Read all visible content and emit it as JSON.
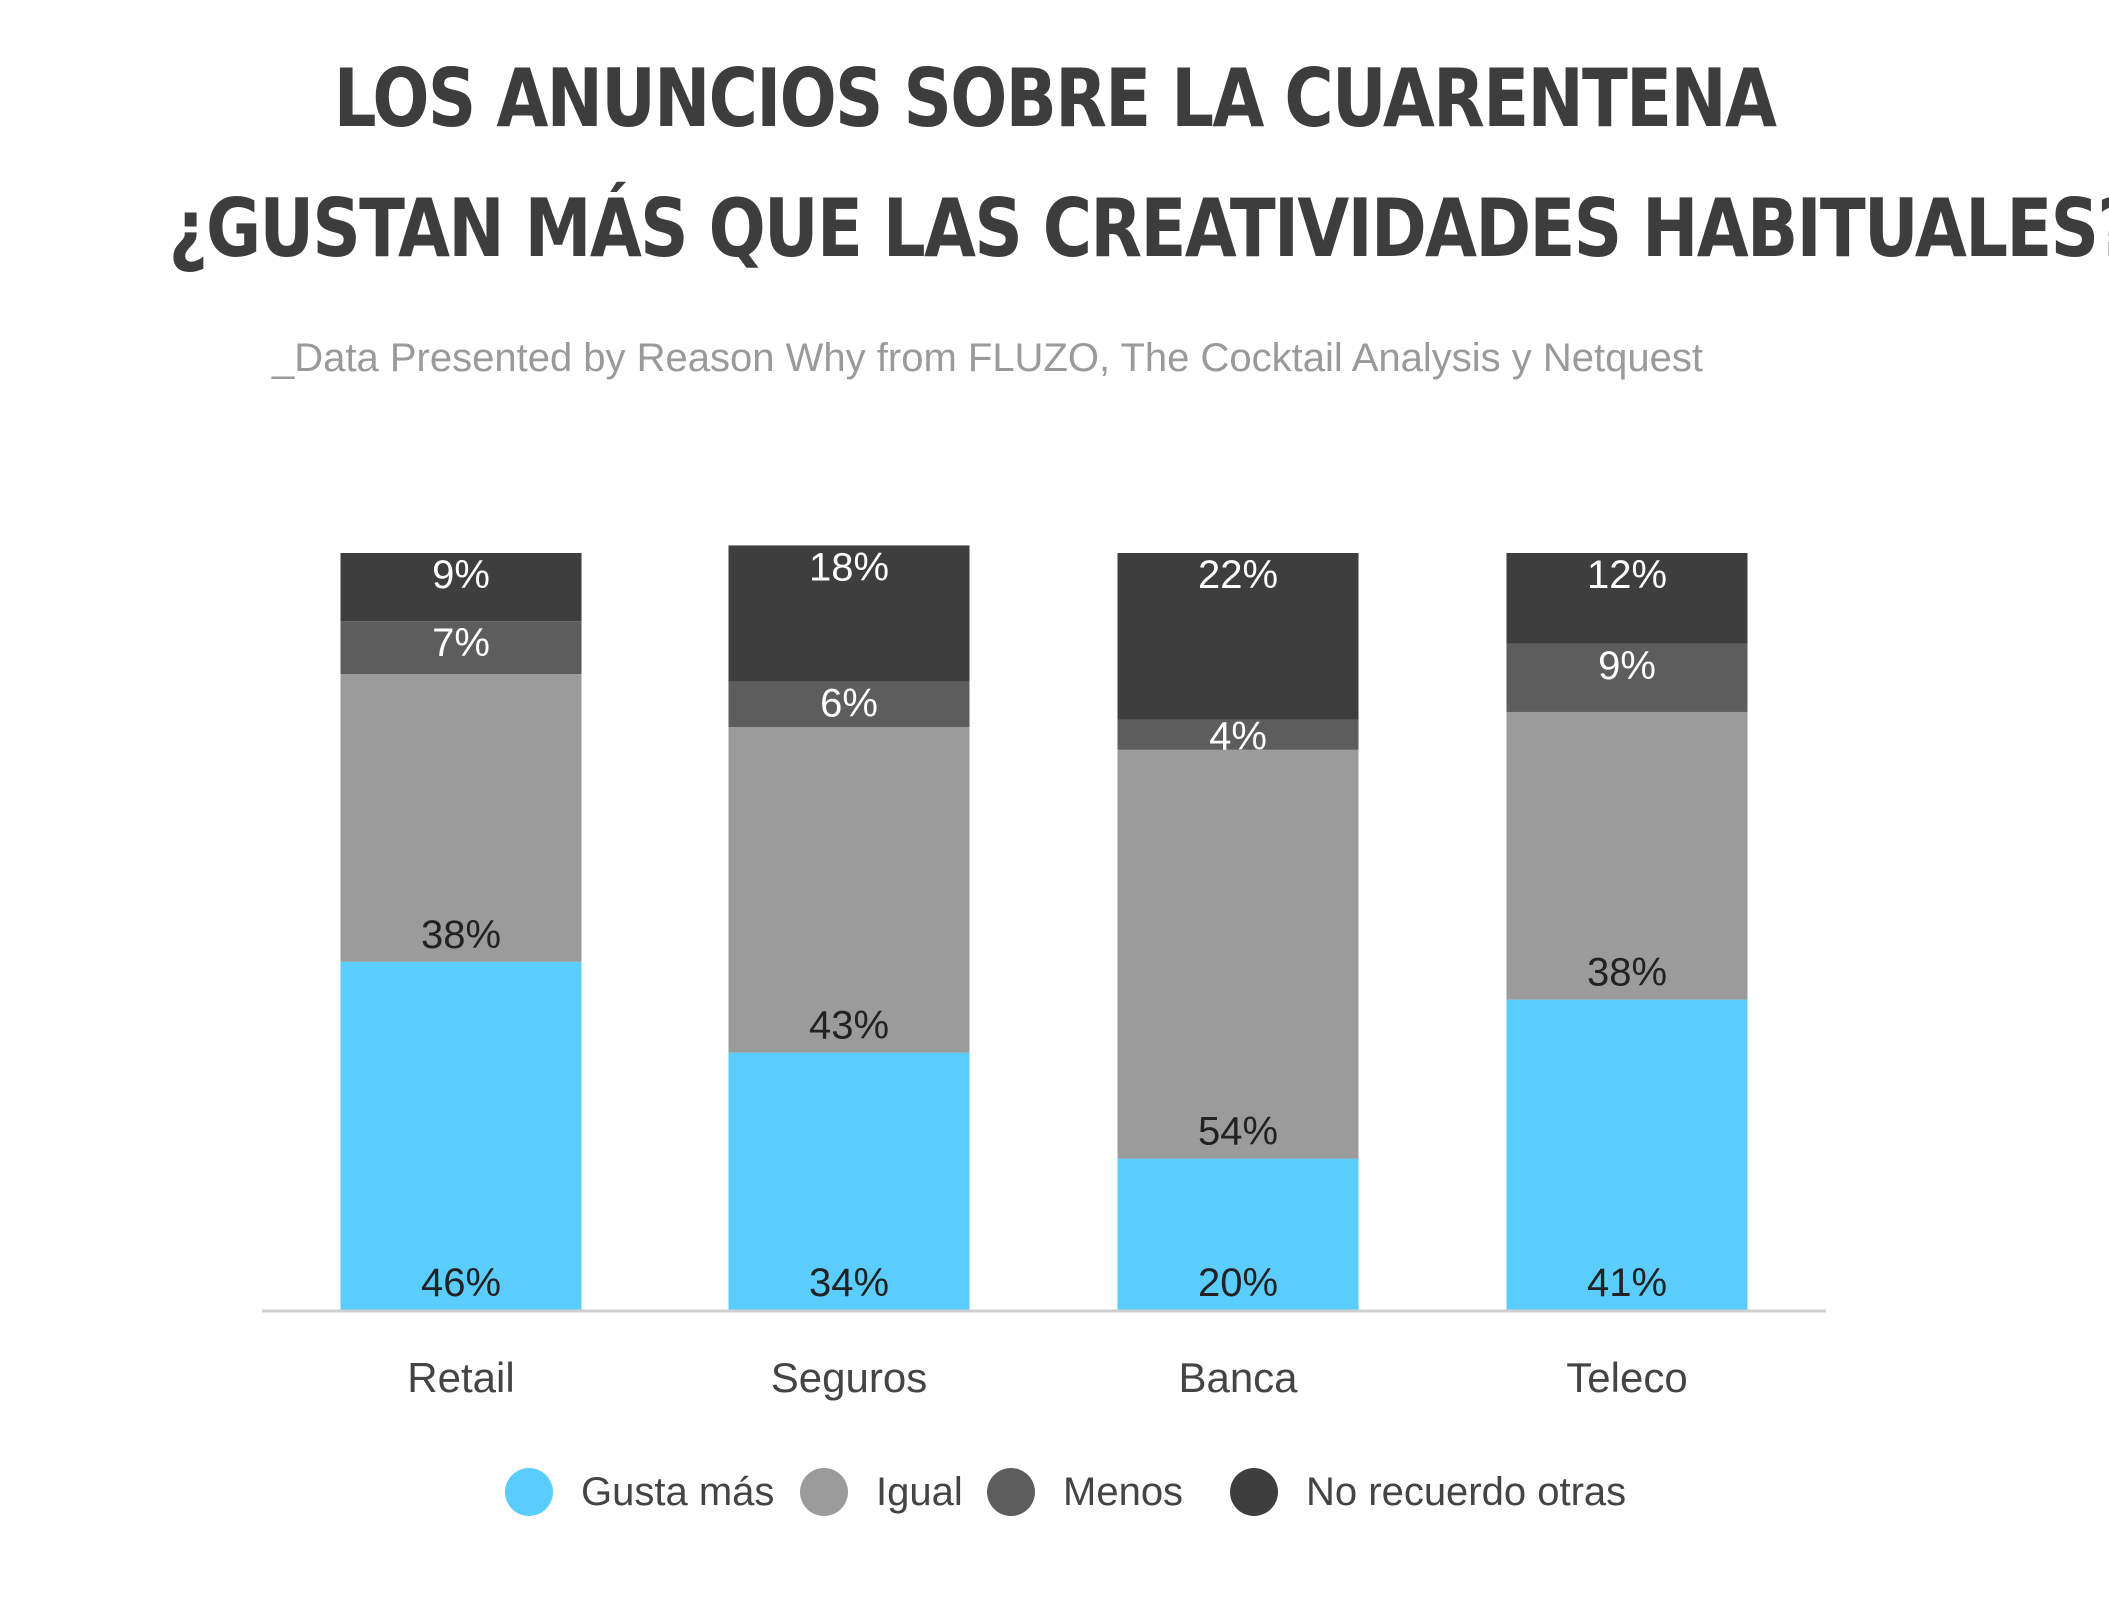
{
  "header": {
    "title_line1": "LOS ANUNCIOS SOBRE LA CUARENTENA",
    "title_line2": "¿GUSTAN MÁS QUE LAS CREATIVIDADES HABITUALES?",
    "subtitle": "_Data Presented by Reason Why from FLUZO, The Cocktail Analysis y Netquest"
  },
  "chart_data": {
    "type": "bar",
    "stacked": true,
    "title": "LOS ANUNCIOS SOBRE LA CUARENTENA ¿GUSTAN MÁS QUE LAS CREATIVIDADES HABITUALES?",
    "subtitle": "_Data Presented by Reason Why from FLUZO, The Cocktail Analysis y Netquest",
    "categories": [
      "Retail",
      "Seguros",
      "Banca",
      "Teleco"
    ],
    "series": [
      {
        "name": "Gusta más",
        "color": "#5bcdfc",
        "values": [
          46,
          34,
          20,
          41
        ],
        "labels": [
          "46%",
          "34%",
          "20%",
          "41%"
        ]
      },
      {
        "name": "Igual",
        "color": "#9b9b9b",
        "values": [
          38,
          43,
          54,
          38
        ],
        "labels": [
          "38%",
          "43%",
          "54%",
          "38%"
        ]
      },
      {
        "name": "Menos",
        "color": "#5d5d5d",
        "values": [
          7,
          6,
          4,
          9
        ],
        "labels": [
          "7%",
          "6%",
          "4%",
          "9%"
        ]
      },
      {
        "name": "No recuerdo otras",
        "color": "#3e3e3e",
        "values": [
          9,
          18,
          22,
          12
        ],
        "labels": [
          "9%",
          "18%",
          "22%",
          "12%"
        ]
      }
    ],
    "ylim": [
      0,
      100
    ],
    "grid": false,
    "legend_position": "bottom"
  }
}
